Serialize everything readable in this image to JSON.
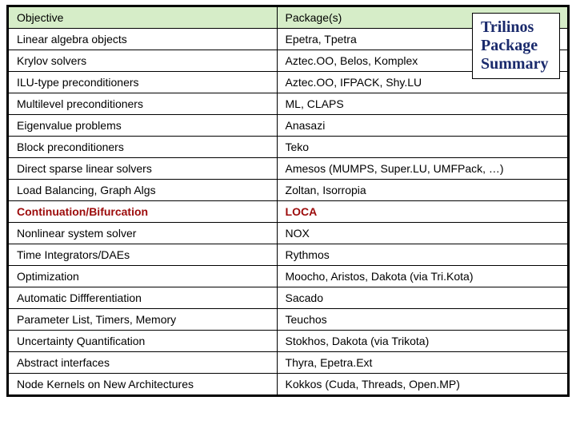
{
  "title": {
    "line1": "Trilinos",
    "line2": "Package",
    "line3": "Summary",
    "text_color": "#1a2a6c",
    "font_family": "Times New Roman",
    "font_size_pt": 15,
    "border_color": "#000000",
    "background": "#ffffff"
  },
  "table": {
    "type": "table",
    "header_background": "#d6edc8",
    "border_color": "#000000",
    "highlight_color": "#9c0b0b",
    "font_size_pt": 10.5,
    "columns": [
      "Objective",
      "Package(s)"
    ],
    "column_widths_pct": [
      48,
      52
    ],
    "highlight_row_index": 9,
    "rows": [
      [
        "Linear algebra objects",
        "Epetra, Tpetra"
      ],
      [
        "Krylov solvers",
        "Aztec.OO, Belos, Komplex"
      ],
      [
        "ILU-type preconditioners",
        "Aztec.OO, IFPACK, Shy.LU"
      ],
      [
        "Multilevel preconditioners",
        "ML, CLAPS"
      ],
      [
        "Eigenvalue problems",
        "Anasazi"
      ],
      [
        "Block preconditioners",
        "Teko"
      ],
      [
        "Direct sparse linear solvers",
        "Amesos (MUMPS, Super.LU, UMFPack, …)"
      ],
      [
        "Load Balancing, Graph Algs",
        "Zoltan, Isorropia"
      ],
      [
        "Continuation/Bifurcation",
        "LOCA"
      ],
      [
        "Nonlinear system solver",
        "NOX"
      ],
      [
        "Time Integrators/DAEs",
        "Rythmos"
      ],
      [
        "Optimization",
        "Moocho, Aristos, Dakota (via Tri.Kota)"
      ],
      [
        "Automatic Diffferentiation",
        "Sacado"
      ],
      [
        "Parameter List, Timers, Memory",
        "Teuchos"
      ],
      [
        "Uncertainty Quantification",
        "Stokhos, Dakota (via Trikota)"
      ],
      [
        "Abstract interfaces",
        "Thyra, Epetra.Ext"
      ],
      [
        "Node Kernels on New Architectures",
        "Kokkos (Cuda, Threads, Open.MP)"
      ]
    ]
  }
}
